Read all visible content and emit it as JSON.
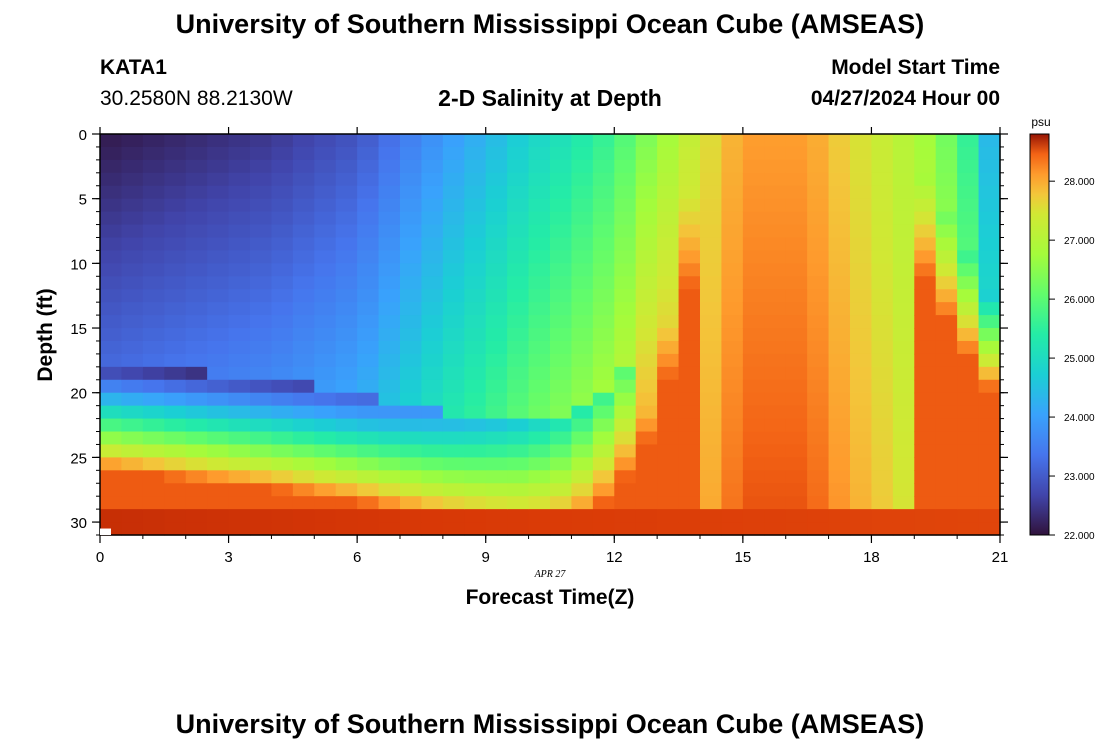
{
  "header": {
    "title": "University of Southern Mississippi Ocean Cube (AMSEAS)",
    "station": "KATA1",
    "coordinates": "30.2580N  88.2130W",
    "plot_title": "2-D Salinity at Depth",
    "model_start_label": "Model Start Time",
    "model_start_value": "04/27/2024 Hour 00"
  },
  "footer": {
    "title": "University of Southern Mississippi Ocean Cube (AMSEAS)"
  },
  "chart_data": {
    "type": "heatmap",
    "title": "2-D Salinity at Depth",
    "xlabel": "Forecast Time(Z)",
    "ylabel": "Depth (ft)",
    "date_label": "APR 27",
    "x_ticks": [
      0,
      3,
      6,
      9,
      12,
      15,
      18,
      21
    ],
    "y_ticks": [
      0,
      5,
      10,
      15,
      20,
      25,
      30
    ],
    "xlim": [
      0,
      21
    ],
    "ylim": [
      0,
      31
    ],
    "colorbar": {
      "unit": "psu",
      "min": 22.0,
      "max": 28.8,
      "ticks": [
        22.0,
        23.0,
        24.0,
        25.0,
        26.0,
        27.0,
        28.0
      ],
      "tick_labels": [
        "22.000",
        "23.000",
        "24.000",
        "25.000",
        "26.000",
        "27.000",
        "28.000"
      ]
    },
    "grid_x_hours": 21,
    "grid_y_levels": 31,
    "salinity_model": {
      "surface_profile": [
        [
          0,
          22.1
        ],
        [
          2,
          22.3
        ],
        [
          4,
          22.5
        ],
        [
          6,
          22.9
        ],
        [
          7,
          23.4
        ],
        [
          8,
          23.9
        ],
        [
          9,
          24.3
        ],
        [
          10,
          24.8
        ],
        [
          11,
          25.2
        ],
        [
          12,
          25.7
        ],
        [
          12.8,
          26.4
        ],
        [
          14,
          27.4
        ],
        [
          15,
          28.1
        ],
        [
          16.5,
          28.1
        ],
        [
          17.5,
          27.6
        ],
        [
          18.5,
          27.2
        ],
        [
          19.5,
          26.6
        ],
        [
          20.3,
          25.5
        ],
        [
          20.7,
          24.5
        ],
        [
          21,
          23.8
        ]
      ],
      "halocline_depth": [
        [
          0,
          17.5
        ],
        [
          4,
          19.0
        ],
        [
          6,
          20.0
        ],
        [
          8,
          21.5
        ],
        [
          10,
          22.5
        ],
        [
          11,
          22.0
        ],
        [
          12,
          19.5
        ],
        [
          13,
          14.0
        ],
        [
          14,
          0
        ]
      ],
      "right_halocline_depth": [
        [
          18.8,
          0
        ],
        [
          19.5,
          5
        ],
        [
          20.4,
          10
        ],
        [
          21,
          13
        ]
      ],
      "deep_value": 28.5,
      "bottom_value": 28.7
    }
  }
}
